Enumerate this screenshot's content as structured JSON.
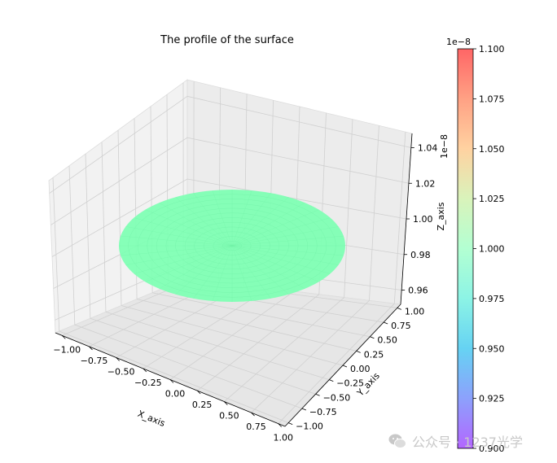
{
  "chart_data": {
    "type": "surface",
    "title": "The profile of the surface",
    "xlabel": "X_axis",
    "ylabel": "Y_axis",
    "zlabel": "Z_axis",
    "z_offset_text": "1e−8",
    "surface_description": "flat circular disk of radius 1 at z = 1.0e-8",
    "surface_z": 1e-08,
    "surface_radius": 1.0,
    "xlim": [
      -1.0,
      1.0
    ],
    "ylim": [
      -1.0,
      1.0
    ],
    "zlim": [
      0.95,
      1.05
    ],
    "x_ticks": [
      "−1.00",
      "−0.75",
      "−0.50",
      "−0.25",
      "0.00",
      "0.25",
      "0.50",
      "0.75",
      "1.00"
    ],
    "y_ticks": [
      "−1.00",
      "−0.75",
      "−0.50",
      "−0.25",
      "0.00",
      "0.25",
      "0.50",
      "0.75",
      "1.00"
    ],
    "z_ticks": [
      "0.96",
      "0.98",
      "1.00",
      "1.02",
      "1.04"
    ],
    "colorbar": {
      "colormap": "rainbow",
      "alpha": 0.6,
      "offset_text": "1e−8",
      "range": [
        0.9,
        1.1
      ],
      "ticks": [
        "0.900",
        "0.925",
        "0.950",
        "0.975",
        "1.000",
        "1.025",
        "1.050",
        "1.075",
        "1.100"
      ]
    },
    "surface_color": "#80ffb4",
    "grid": true
  },
  "watermark": {
    "text": "公众号 · 1237光学",
    "icon": "wechat-icon"
  }
}
